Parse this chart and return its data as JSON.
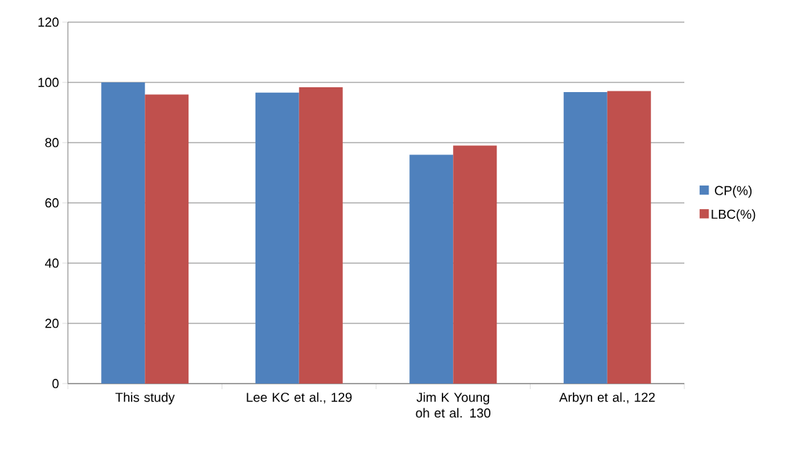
{
  "chart_data": {
    "type": "bar",
    "categories": [
      "This study",
      "Lee KC et al., 129",
      "Jim K Young oh et al. 130",
      "Arbyn et al., 122"
    ],
    "series": [
      {
        "name": "CP(%)",
        "color": "#4f81bd",
        "values": [
          100,
          96.6,
          76,
          96.8
        ]
      },
      {
        "name": "LBC(%)",
        "color": "#c0504d",
        "values": [
          96,
          98.4,
          79,
          97.1
        ]
      }
    ],
    "ylim": [
      0,
      120
    ],
    "yticks": [
      0,
      20,
      40,
      60,
      80,
      100,
      120
    ],
    "grid": "y",
    "legend": "right"
  }
}
